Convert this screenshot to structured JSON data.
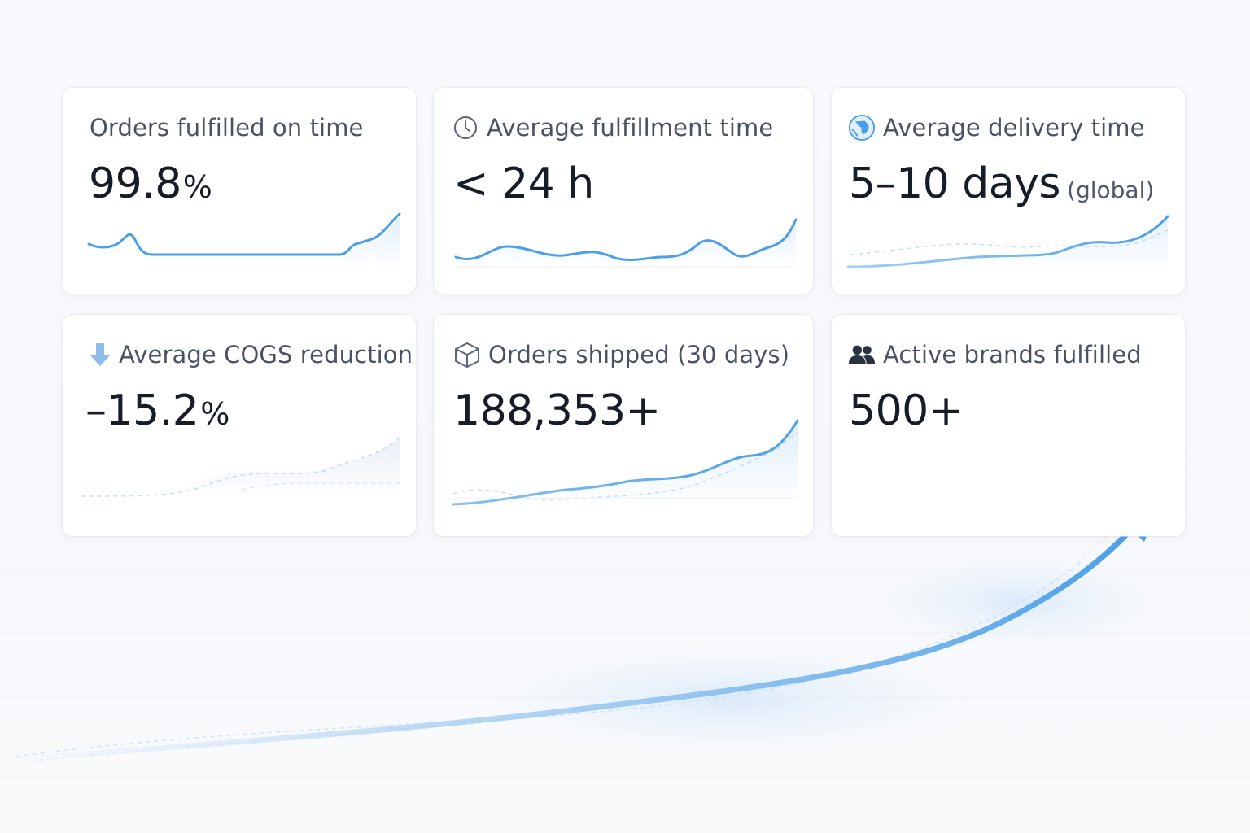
{
  "colors": {
    "accent": "#4a9fe8",
    "accent_light": "#a8cff3",
    "card_bg": "#ffffff",
    "title_text": "#4a5366",
    "value_text": "#161c28"
  },
  "cards": [
    {
      "title": "Orders fulfilled on time",
      "icon": "",
      "value": "99.8",
      "unit": "%",
      "suffix": ""
    },
    {
      "title": "Average fulfillment time",
      "icon": "clock-icon",
      "value": "< 24 h",
      "unit": "",
      "suffix": ""
    },
    {
      "title": "Average delivery time",
      "icon": "globe-icon",
      "value": "5–10 days",
      "unit": "",
      "suffix": "(global)"
    },
    {
      "title": "Average COGS reduction",
      "icon": "arrow-down-icon",
      "value": "–15.2",
      "unit": "%",
      "suffix": ""
    },
    {
      "title": "Orders shipped (30 days)",
      "icon": "box-icon",
      "value": "188,353+",
      "unit": "",
      "suffix": ""
    },
    {
      "title": "Active brands fulfilled",
      "icon": "users-icon",
      "value": "500+",
      "unit": "",
      "suffix": ""
    }
  ]
}
